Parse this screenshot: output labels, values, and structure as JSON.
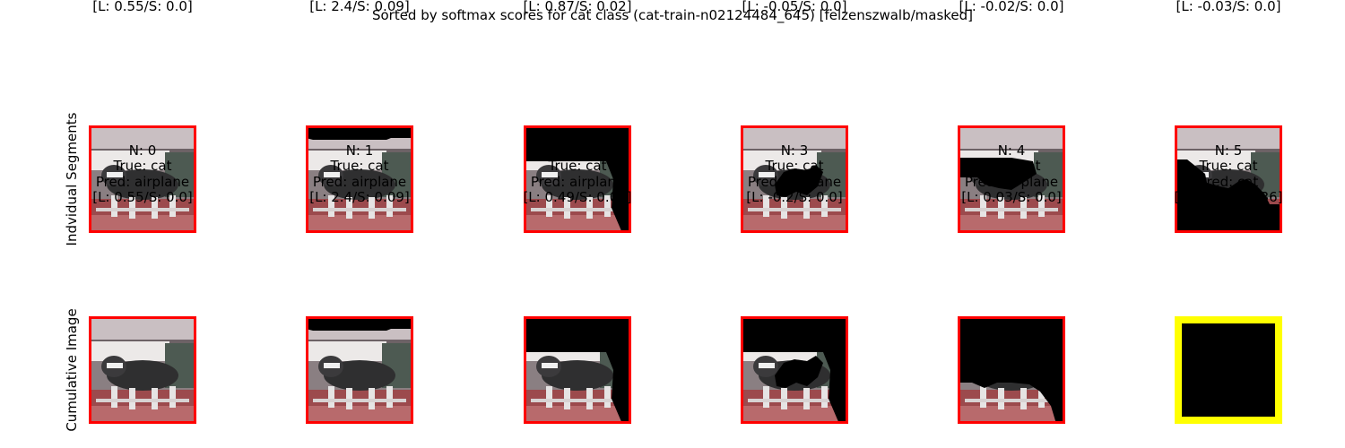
{
  "figure_title": "Sorted by softmax scores for cat class (cat-train-n02124484_645) [felzenszwalb/masked]",
  "colors": {
    "default_border": "#ff0000",
    "highlight_border": "#ffff00",
    "mask": "#000000"
  },
  "chart_data": {
    "type": "image-grid",
    "title": "Sorted by softmax scores for cat class (cat-train-n02124484_645) [felzenszwalb/masked]",
    "rows": [
      {
        "label": "Indvidual Segments",
        "panels": [
          {
            "n": "N: 0",
            "true": "True: cat",
            "pred": "Pred: airplane",
            "ls": "[L: 0.55/S: 0.0]",
            "highlight": false,
            "mask": "none"
          },
          {
            "n": "N: 1",
            "true": "True: cat",
            "pred": "Pred: airplane",
            "ls": "[L: 2.4/S: 0.09]",
            "highlight": false,
            "mask": "top-strip"
          },
          {
            "n": "N: 2",
            "true": "True: cat",
            "pred": "Pred: airplane",
            "ls": "[L: 0.87/S: 0.02]",
            "highlight": false,
            "mask": "top-right"
          },
          {
            "n": "N: 3",
            "true": "True: cat",
            "pred": "Pred: airplane",
            "ls": "[L: -0.05/S: 0.0]",
            "highlight": false,
            "mask": "cat-body"
          },
          {
            "n": "N: 4",
            "true": "True: cat",
            "pred": "Pred: airplane",
            "ls": "[L: -0.02/S: 0.0]",
            "highlight": false,
            "mask": "middle-band"
          },
          {
            "n": "N: 5",
            "true": "True: cat",
            "pred": "Pred: airplane",
            "ls": "[L: -0.03/S: 0.0]",
            "highlight": false,
            "mask": "lower-inverse"
          }
        ]
      },
      {
        "label": "Cumulative Image",
        "panels": [
          {
            "n": "N: 0",
            "true": "True: cat",
            "pred": "Pred: airplane",
            "ls": "[L: 0.55/S: 0.0]",
            "highlight": false,
            "mask": "none"
          },
          {
            "n": "N: 1",
            "true": "True: cat",
            "pred": "Pred: airplane",
            "ls": "[L: 2.4/S: 0.09]",
            "highlight": false,
            "mask": "top-strip"
          },
          {
            "n": "N: 2",
            "true": "True: cat",
            "pred": "Pred: airplane",
            "ls": "[L: 0.49/S: 0.01]",
            "highlight": false,
            "mask": "top-right"
          },
          {
            "n": "N: 3",
            "true": "True: cat",
            "pred": "Pred: airplane",
            "ls": "[L: -0.2/S: 0.0]",
            "highlight": false,
            "mask": "cumulative-3"
          },
          {
            "n": "N: 4",
            "true": "True: cat",
            "pred": "Pred: airplane",
            "ls": "[L: 0.03/S: 0.0]",
            "highlight": false,
            "mask": "cumulative-4"
          },
          {
            "n": "N: 5",
            "true": "True: cat",
            "pred": "Pred: cat",
            "ls": "[L: 1.68/S: 0.36]",
            "highlight": true,
            "mask": "full"
          }
        ]
      }
    ]
  }
}
